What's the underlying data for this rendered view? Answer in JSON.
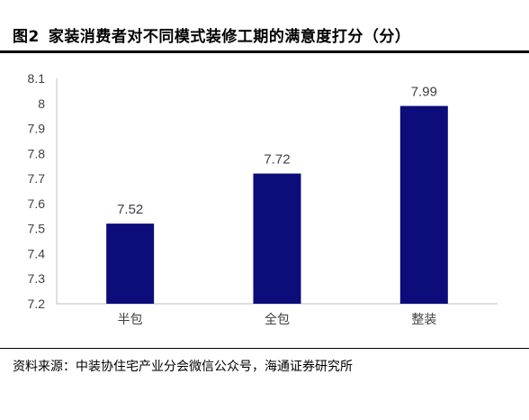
{
  "figure": {
    "number": "图2",
    "title": "家装消费者对不同模式装修工期的满意度打分（分）"
  },
  "source": "资料来源：中装协住宅产业分会微信公众号，海通证券研究所",
  "colors": {
    "bar": "#0c0c7a",
    "axis": "#bfbfbf",
    "rule": "#000000"
  },
  "chart_data": {
    "type": "bar",
    "title": "家装消费者对不同模式装修工期的满意度打分（分）",
    "categories": [
      "半包",
      "全包",
      "整装"
    ],
    "values": [
      7.52,
      7.72,
      7.99
    ],
    "data_labels": [
      "7.52",
      "7.72",
      "7.99"
    ],
    "y_ticks": [
      "7.2",
      "7.3",
      "7.4",
      "7.5",
      "7.6",
      "7.7",
      "7.8",
      "7.9",
      "8",
      "8.1"
    ],
    "ylim": [
      7.2,
      8.1
    ],
    "xlabel": "",
    "ylabel": "",
    "grid": false,
    "legend": "none"
  }
}
